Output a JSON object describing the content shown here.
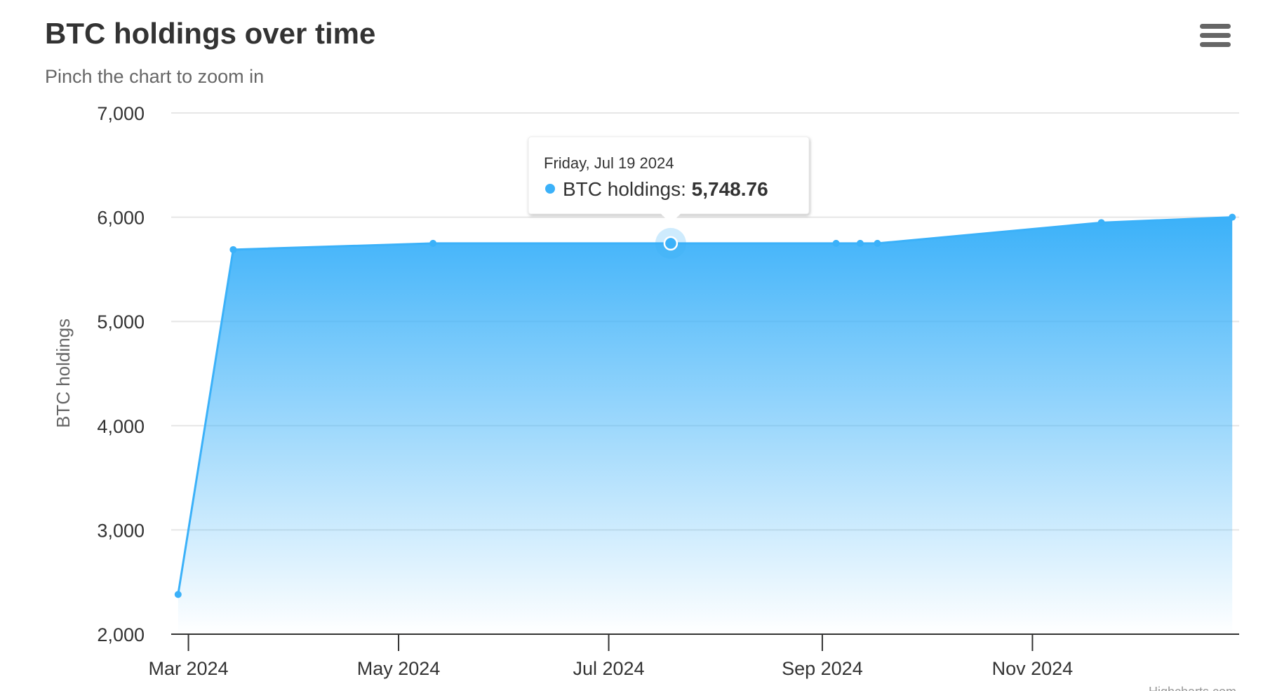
{
  "title": "BTC holdings over time",
  "subtitle": "Pinch the chart to zoom in",
  "menu_icon": "hamburger-menu-icon",
  "credits": "Highcharts.com",
  "colors": {
    "series": "#3bb1f9",
    "grid": "#e6e6e6",
    "axis_line": "#333333"
  },
  "tooltip": {
    "date": "Friday, Jul 19 2024",
    "series_name": "BTC holdings",
    "value_label": "5,748.76",
    "point_date": "2024-07-19"
  },
  "chart_data": {
    "type": "area",
    "ylabel": "BTC holdings",
    "xlabel": "",
    "ylim": [
      2000,
      7000
    ],
    "yticks": [
      2000,
      3000,
      4000,
      5000,
      6000,
      7000
    ],
    "ytick_labels": [
      "2,000",
      "3,000",
      "4,000",
      "5,000",
      "6,000",
      "7,000"
    ],
    "xlim": [
      "2024-02-25",
      "2024-12-31"
    ],
    "xticks": [
      "2024-03-01",
      "2024-05-01",
      "2024-07-01",
      "2024-09-01",
      "2024-11-01"
    ],
    "xtick_labels": [
      "Mar 2024",
      "May 2024",
      "Jul 2024",
      "Sep 2024",
      "Nov 2024"
    ],
    "grid": true,
    "series": [
      {
        "name": "BTC holdings",
        "points": [
          {
            "x": "2024-02-27",
            "y": 2381
          },
          {
            "x": "2024-03-14",
            "y": 5689
          },
          {
            "x": "2024-05-11",
            "y": 5749
          },
          {
            "x": "2024-07-19",
            "y": 5748.76
          },
          {
            "x": "2024-09-05",
            "y": 5749
          },
          {
            "x": "2024-09-12",
            "y": 5749
          },
          {
            "x": "2024-09-17",
            "y": 5749
          },
          {
            "x": "2024-11-21",
            "y": 5948
          },
          {
            "x": "2024-12-29",
            "y": 6000
          }
        ]
      }
    ]
  }
}
